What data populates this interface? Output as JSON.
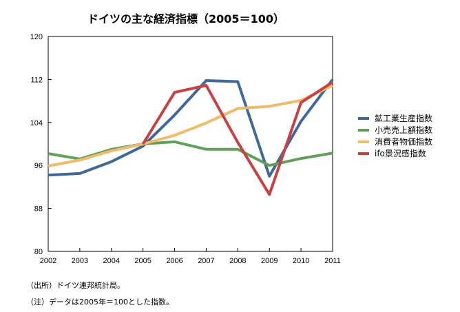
{
  "chart_data": {
    "type": "line",
    "title": "ドイツの主な経済指標（2005＝100）",
    "xlabel": "",
    "ylabel": "",
    "categories": [
      "2002",
      "2003",
      "2004",
      "2005",
      "2006",
      "2007",
      "2008",
      "2009",
      "2010",
      "2011"
    ],
    "ylim": [
      80,
      120
    ],
    "yticks": [
      "80",
      "88",
      "96",
      "104",
      "112",
      "120"
    ],
    "grid": false,
    "legend_position": "right",
    "series": [
      {
        "name": "鉱工業生産指数",
        "color": "#3d6a99",
        "values": [
          94.2,
          94.5,
          96.7,
          99.6,
          105.4,
          111.8,
          111.6,
          94.0,
          104.2,
          112.0
        ]
      },
      {
        "name": "小売売上額指数",
        "color": "#62a05a",
        "values": [
          98.2,
          97.2,
          99.0,
          100.0,
          100.4,
          99.0,
          99.0,
          96.0,
          97.3,
          98.3
        ]
      },
      {
        "name": "消費者物価指数",
        "color": "#f0bb6a",
        "values": [
          95.9,
          97.0,
          98.7,
          100.0,
          101.6,
          103.9,
          106.6,
          107.0,
          108.1,
          110.9
        ]
      },
      {
        "name": "ifo景況感指数",
        "color": "#c84040",
        "values": [
          null,
          null,
          null,
          100.0,
          109.6,
          110.9,
          100.3,
          90.6,
          107.7,
          111.5
        ]
      }
    ]
  },
  "notes": {
    "source": "（出所）ドイツ連邦統計局。",
    "caption": "（注）データは2005年＝100とした指数。"
  }
}
